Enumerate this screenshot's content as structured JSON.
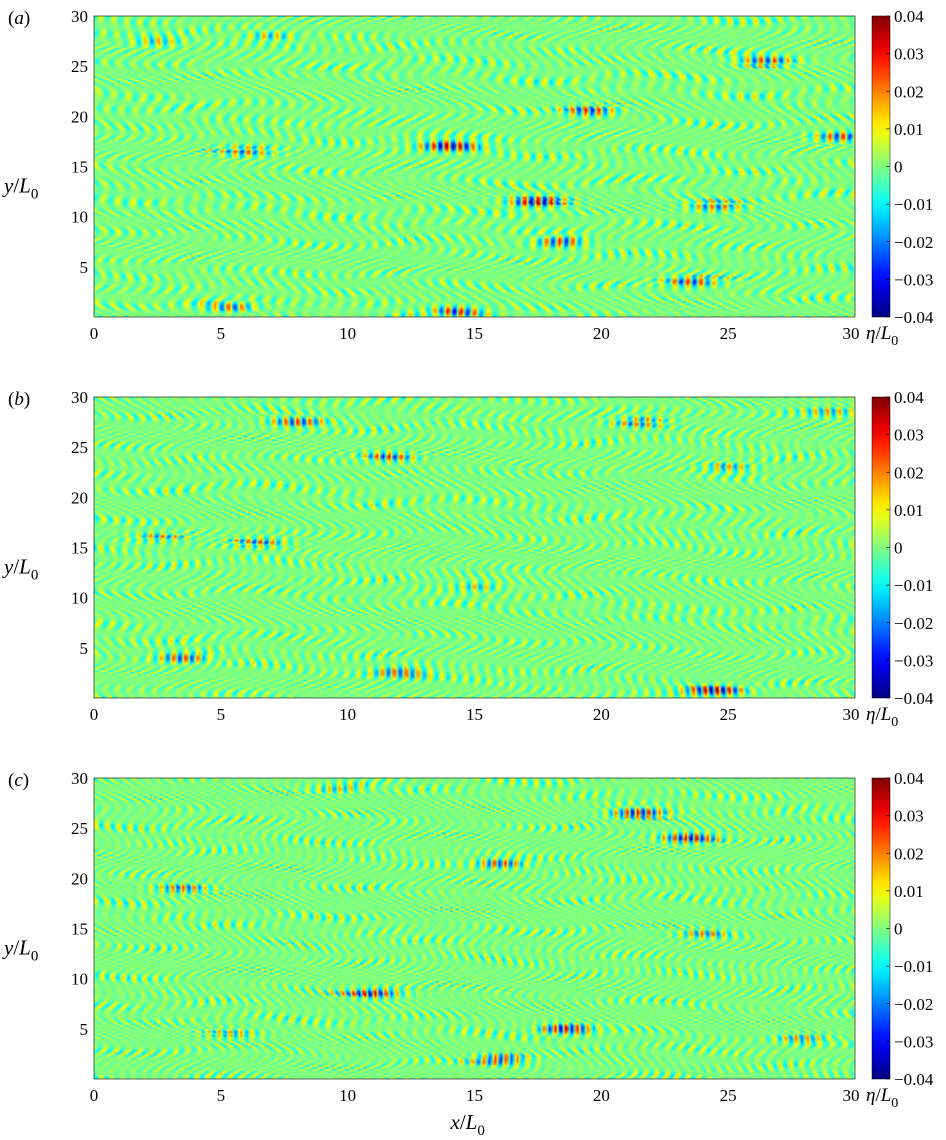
{
  "chart_data": [
    {
      "type": "heatmap",
      "panel_label": "(a)",
      "xlabel": "",
      "ylabel": "y/L0",
      "xlim": [
        0,
        30
      ],
      "ylim": [
        0,
        30
      ],
      "xticks": [
        "0",
        "5",
        "10",
        "15",
        "20",
        "25",
        "30"
      ],
      "yticks": [
        "5",
        "10",
        "15",
        "20",
        "25",
        "30"
      ],
      "colorbar": {
        "label": "η/L0",
        "range": [
          -0.04,
          0.04
        ],
        "ticks": [
          "0.04",
          "0.03",
          "0.02",
          "0.01",
          "0",
          "−0.01",
          "−0.02",
          "−0.03",
          "−0.04"
        ],
        "colormap": "jet"
      },
      "field": {
        "background": 0,
        "ripple_wavelength": 0.55,
        "ripple_amplitude": 0.012,
        "wave_packets": [
          {
            "x": 17.5,
            "y": 11.5,
            "amp": 0.04
          },
          {
            "x": 18.5,
            "y": 7.5,
            "amp": 0.035
          },
          {
            "x": 19.5,
            "y": 20.5,
            "amp": 0.03
          },
          {
            "x": 14.0,
            "y": 17.0,
            "amp": 0.035
          },
          {
            "x": 14.0,
            "y": 0.5,
            "amp": -0.035
          },
          {
            "x": 29.5,
            "y": 18.0,
            "amp": 0.03
          },
          {
            "x": 26.5,
            "y": 25.5,
            "amp": 0.03
          },
          {
            "x": 23.5,
            "y": 3.5,
            "amp": 0.03
          },
          {
            "x": 24.5,
            "y": 11.0,
            "amp": 0.025
          },
          {
            "x": 6.0,
            "y": 16.5,
            "amp": 0.025
          },
          {
            "x": 5.5,
            "y": 1.0,
            "amp": 0.025
          },
          {
            "x": 2.5,
            "y": 27.5,
            "amp": 0.02
          },
          {
            "x": 7.0,
            "y": 28.0,
            "amp": 0.02
          }
        ]
      }
    },
    {
      "type": "heatmap",
      "panel_label": "(b)",
      "xlabel": "",
      "ylabel": "y/L0",
      "xlim": [
        0,
        30
      ],
      "ylim": [
        0,
        30
      ],
      "xticks": [
        "0",
        "5",
        "10",
        "15",
        "20",
        "25",
        "30"
      ],
      "yticks": [
        "5",
        "10",
        "15",
        "20",
        "25",
        "30"
      ],
      "colorbar": {
        "label": "η/L0",
        "range": [
          -0.04,
          0.04
        ],
        "ticks": [
          "0.04",
          "0.03",
          "0.02",
          "0.01",
          "0",
          "−0.01",
          "−0.02",
          "−0.03",
          "−0.04"
        ],
        "colormap": "jet"
      },
      "field": {
        "background": 0,
        "ripple_wavelength": 0.5,
        "ripple_amplitude": 0.012,
        "wave_packets": [
          {
            "x": 24.5,
            "y": 0.8,
            "amp": -0.04
          },
          {
            "x": 8.0,
            "y": 27.5,
            "amp": 0.03
          },
          {
            "x": 11.5,
            "y": 24.0,
            "amp": 0.03
          },
          {
            "x": 21.5,
            "y": 27.5,
            "amp": 0.025
          },
          {
            "x": 3.5,
            "y": 4.0,
            "amp": 0.03
          },
          {
            "x": 12.0,
            "y": 2.5,
            "amp": 0.025
          },
          {
            "x": 6.5,
            "y": 15.5,
            "amp": 0.025
          },
          {
            "x": 2.5,
            "y": 16.0,
            "amp": 0.02
          },
          {
            "x": 25.0,
            "y": 23.0,
            "amp": 0.02
          },
          {
            "x": 15.0,
            "y": 11.0,
            "amp": 0.02
          },
          {
            "x": 29.0,
            "y": 28.5,
            "amp": 0.02
          }
        ]
      }
    },
    {
      "type": "heatmap",
      "panel_label": "(c)",
      "xlabel": "x/L0",
      "ylabel": "y/L0",
      "xlim": [
        0,
        30
      ],
      "ylim": [
        0,
        30
      ],
      "xticks": [
        "0",
        "5",
        "10",
        "15",
        "20",
        "25",
        "30"
      ],
      "yticks": [
        "5",
        "10",
        "15",
        "20",
        "25",
        "30"
      ],
      "colorbar": {
        "label": "η/L0",
        "range": [
          -0.04,
          0.04
        ],
        "ticks": [
          "0.04",
          "0.03",
          "0.02",
          "0.01",
          "0",
          "−0.01",
          "−0.02",
          "−0.03",
          "−0.04"
        ],
        "colormap": "jet"
      },
      "field": {
        "background": 0,
        "ripple_wavelength": 0.45,
        "ripple_amplitude": 0.012,
        "wave_packets": [
          {
            "x": 21.5,
            "y": 26.5,
            "amp": 0.035
          },
          {
            "x": 23.5,
            "y": 24.0,
            "amp": 0.035
          },
          {
            "x": 18.5,
            "y": 5.0,
            "amp": 0.035
          },
          {
            "x": 16.0,
            "y": 21.5,
            "amp": 0.03
          },
          {
            "x": 11.0,
            "y": 8.5,
            "amp": 0.03
          },
          {
            "x": 16.0,
            "y": 2.0,
            "amp": 0.03
          },
          {
            "x": 3.5,
            "y": 19.0,
            "amp": 0.025
          },
          {
            "x": 9.5,
            "y": 29.0,
            "amp": 0.02
          },
          {
            "x": 24.0,
            "y": 14.5,
            "amp": 0.02
          },
          {
            "x": 5.5,
            "y": 4.5,
            "amp": 0.02
          },
          {
            "x": 28.0,
            "y": 4.0,
            "amp": 0.02
          }
        ]
      }
    }
  ]
}
